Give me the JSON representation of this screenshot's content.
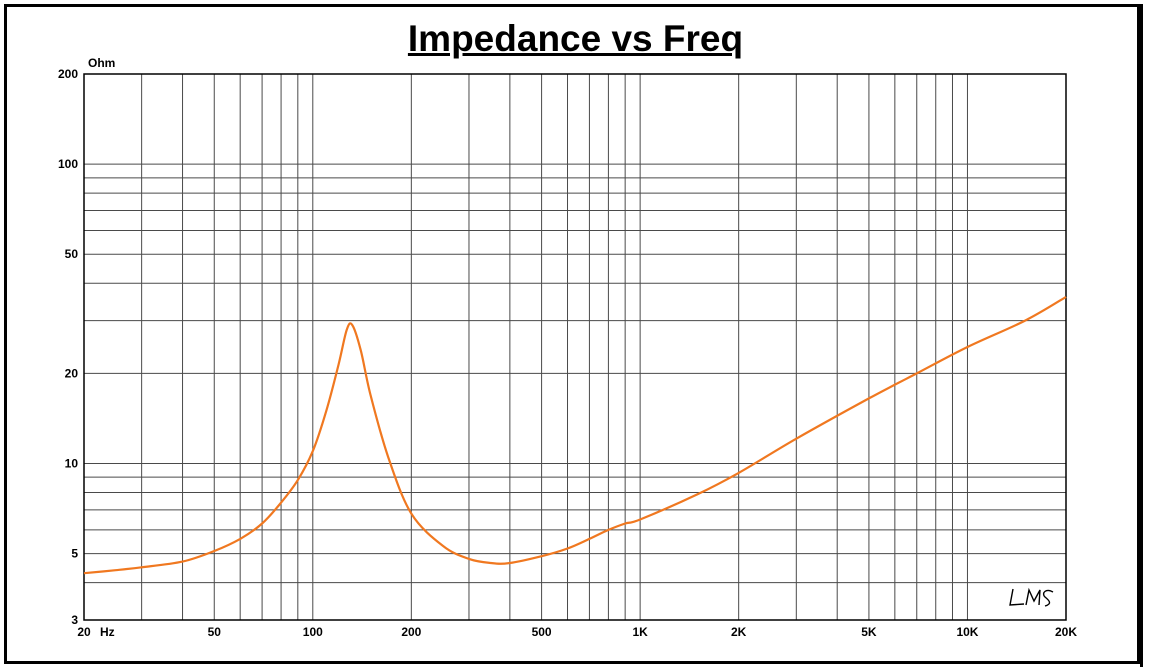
{
  "chart_data": {
    "type": "line",
    "title": "Impedance vs Freq",
    "ylabel": "Ohm",
    "xunit": "Hz",
    "xscale": "log",
    "yscale": "log",
    "xlim": [
      20,
      20000
    ],
    "ylim": [
      3,
      200
    ],
    "grid": true,
    "logo": "LMS",
    "line_color": "#f07820",
    "x_ticks": [
      {
        "value": 20,
        "label": "20"
      },
      {
        "value": 50,
        "label": "50"
      },
      {
        "value": 100,
        "label": "100"
      },
      {
        "value": 200,
        "label": "200"
      },
      {
        "value": 500,
        "label": "500"
      },
      {
        "value": 1000,
        "label": "1K"
      },
      {
        "value": 2000,
        "label": "2K"
      },
      {
        "value": 5000,
        "label": "5K"
      },
      {
        "value": 10000,
        "label": "10K"
      },
      {
        "value": 20000,
        "label": "20K"
      }
    ],
    "y_ticks": [
      {
        "value": 3,
        "label": "3"
      },
      {
        "value": 5,
        "label": "5"
      },
      {
        "value": 10,
        "label": "10"
      },
      {
        "value": 20,
        "label": "20"
      },
      {
        "value": 50,
        "label": "50"
      },
      {
        "value": 100,
        "label": "100"
      },
      {
        "value": 200,
        "label": "200"
      }
    ],
    "series": [
      {
        "x": [
          20,
          25,
          30,
          40,
          50,
          60,
          70,
          80,
          90,
          100,
          110,
          120,
          127,
          132,
          140,
          150,
          170,
          200,
          250,
          300,
          350,
          400,
          500,
          600,
          700,
          800,
          900,
          1000,
          1500,
          2000,
          3000,
          5000,
          7000,
          10000,
          15000,
          20000
        ],
        "y": [
          4.3,
          4.4,
          4.5,
          4.7,
          5.1,
          5.6,
          6.3,
          7.4,
          8.8,
          11.0,
          15.0,
          21.5,
          28.0,
          29.0,
          24.0,
          17.0,
          10.5,
          6.8,
          5.3,
          4.8,
          4.65,
          4.65,
          4.9,
          5.2,
          5.6,
          6.0,
          6.3,
          6.5,
          7.9,
          9.3,
          12.1,
          16.5,
          20.0,
          24.5,
          30.0,
          36.0
        ]
      }
    ]
  }
}
